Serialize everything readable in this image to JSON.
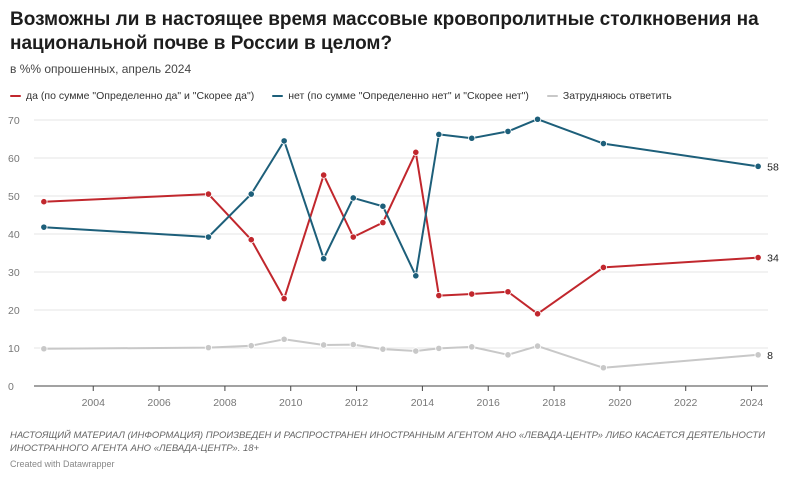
{
  "header": {
    "title": "Возможны ли в настоящее время массовые кровопролитные столкновения на национальной почве в России в целом?",
    "subtitle": "в %% опрошенных, апрель 2024"
  },
  "footer": {
    "note": "НАСТОЯЩИЙ МАТЕРИАЛ (ИНФОРМАЦИЯ) ПРОИЗВЕДЕН И РАСПРОСТРАНЕН ИНОСТРАННЫМ АГЕНТОМ АНО «ЛЕВАДА-ЦЕНТР» ЛИБО КАСАЕТСЯ ДЕЯТЕЛЬНОСТИ ИНОСТРАННОГО АГЕНТА АНО «ЛЕВАДА-ЦЕНТР». 18+",
    "credit": "Created with Datawrapper"
  },
  "chart_data": {
    "type": "line",
    "title": "Возможны ли в настоящее время массовые кровопролитные столкновения на национальной почве в России в целом?",
    "subtitle": "в %% опрошенных, апрель 2024",
    "xlabel": "",
    "ylabel": "",
    "xlim": [
      2002.2,
      2024.5
    ],
    "ylim": [
      0,
      70
    ],
    "x_ticks": [
      2004,
      2006,
      2008,
      2010,
      2012,
      2014,
      2016,
      2018,
      2020,
      2022,
      2024
    ],
    "y_ticks": [
      0,
      10,
      20,
      30,
      40,
      50,
      60,
      70
    ],
    "grid": "horizontal",
    "legend_position": "top-left",
    "series": [
      {
        "name": "да (по сумме \"Определенно да\" и \"Скорее да\")",
        "color": "#c1272d",
        "end_label": "34",
        "points": [
          [
            2002.5,
            48.5
          ],
          [
            2007.5,
            50.5
          ],
          [
            2008.8,
            38.5
          ],
          [
            2009.8,
            23
          ],
          [
            2011,
            55.5
          ],
          [
            2011.9,
            39.2
          ],
          [
            2012.8,
            43
          ],
          [
            2013.8,
            61.5
          ],
          [
            2014.5,
            23.8
          ],
          [
            2015.5,
            24.2
          ],
          [
            2016.6,
            24.8
          ],
          [
            2017.5,
            19
          ],
          [
            2019.5,
            31.2
          ],
          [
            2024.2,
            33.8
          ]
        ]
      },
      {
        "name": "нет (по сумме \"Определенно нет\" и \"Скорее нет\")",
        "color": "#1d5f7a",
        "end_label": "58",
        "points": [
          [
            2002.5,
            41.8
          ],
          [
            2007.5,
            39.2
          ],
          [
            2008.8,
            50.5
          ],
          [
            2009.8,
            64.5
          ],
          [
            2011,
            33.5
          ],
          [
            2011.9,
            49.5
          ],
          [
            2012.8,
            47.3
          ],
          [
            2013.8,
            29
          ],
          [
            2014.5,
            66.2
          ],
          [
            2015.5,
            65.2
          ],
          [
            2016.6,
            67
          ],
          [
            2017.5,
            70.2
          ],
          [
            2019.5,
            63.8
          ],
          [
            2024.2,
            57.8
          ]
        ]
      },
      {
        "name": "Затрудняюсь ответить",
        "color": "#c8c8c8",
        "end_label": "8",
        "points": [
          [
            2002.5,
            9.8
          ],
          [
            2007.5,
            10.1
          ],
          [
            2008.8,
            10.6
          ],
          [
            2009.8,
            12.3
          ],
          [
            2011,
            10.8
          ],
          [
            2011.9,
            10.9
          ],
          [
            2012.8,
            9.7
          ],
          [
            2013.8,
            9.2
          ],
          [
            2014.5,
            9.9
          ],
          [
            2015.5,
            10.3
          ],
          [
            2016.6,
            8.2
          ],
          [
            2017.5,
            10.5
          ],
          [
            2019.5,
            4.8
          ],
          [
            2024.2,
            8.2
          ]
        ]
      }
    ]
  }
}
